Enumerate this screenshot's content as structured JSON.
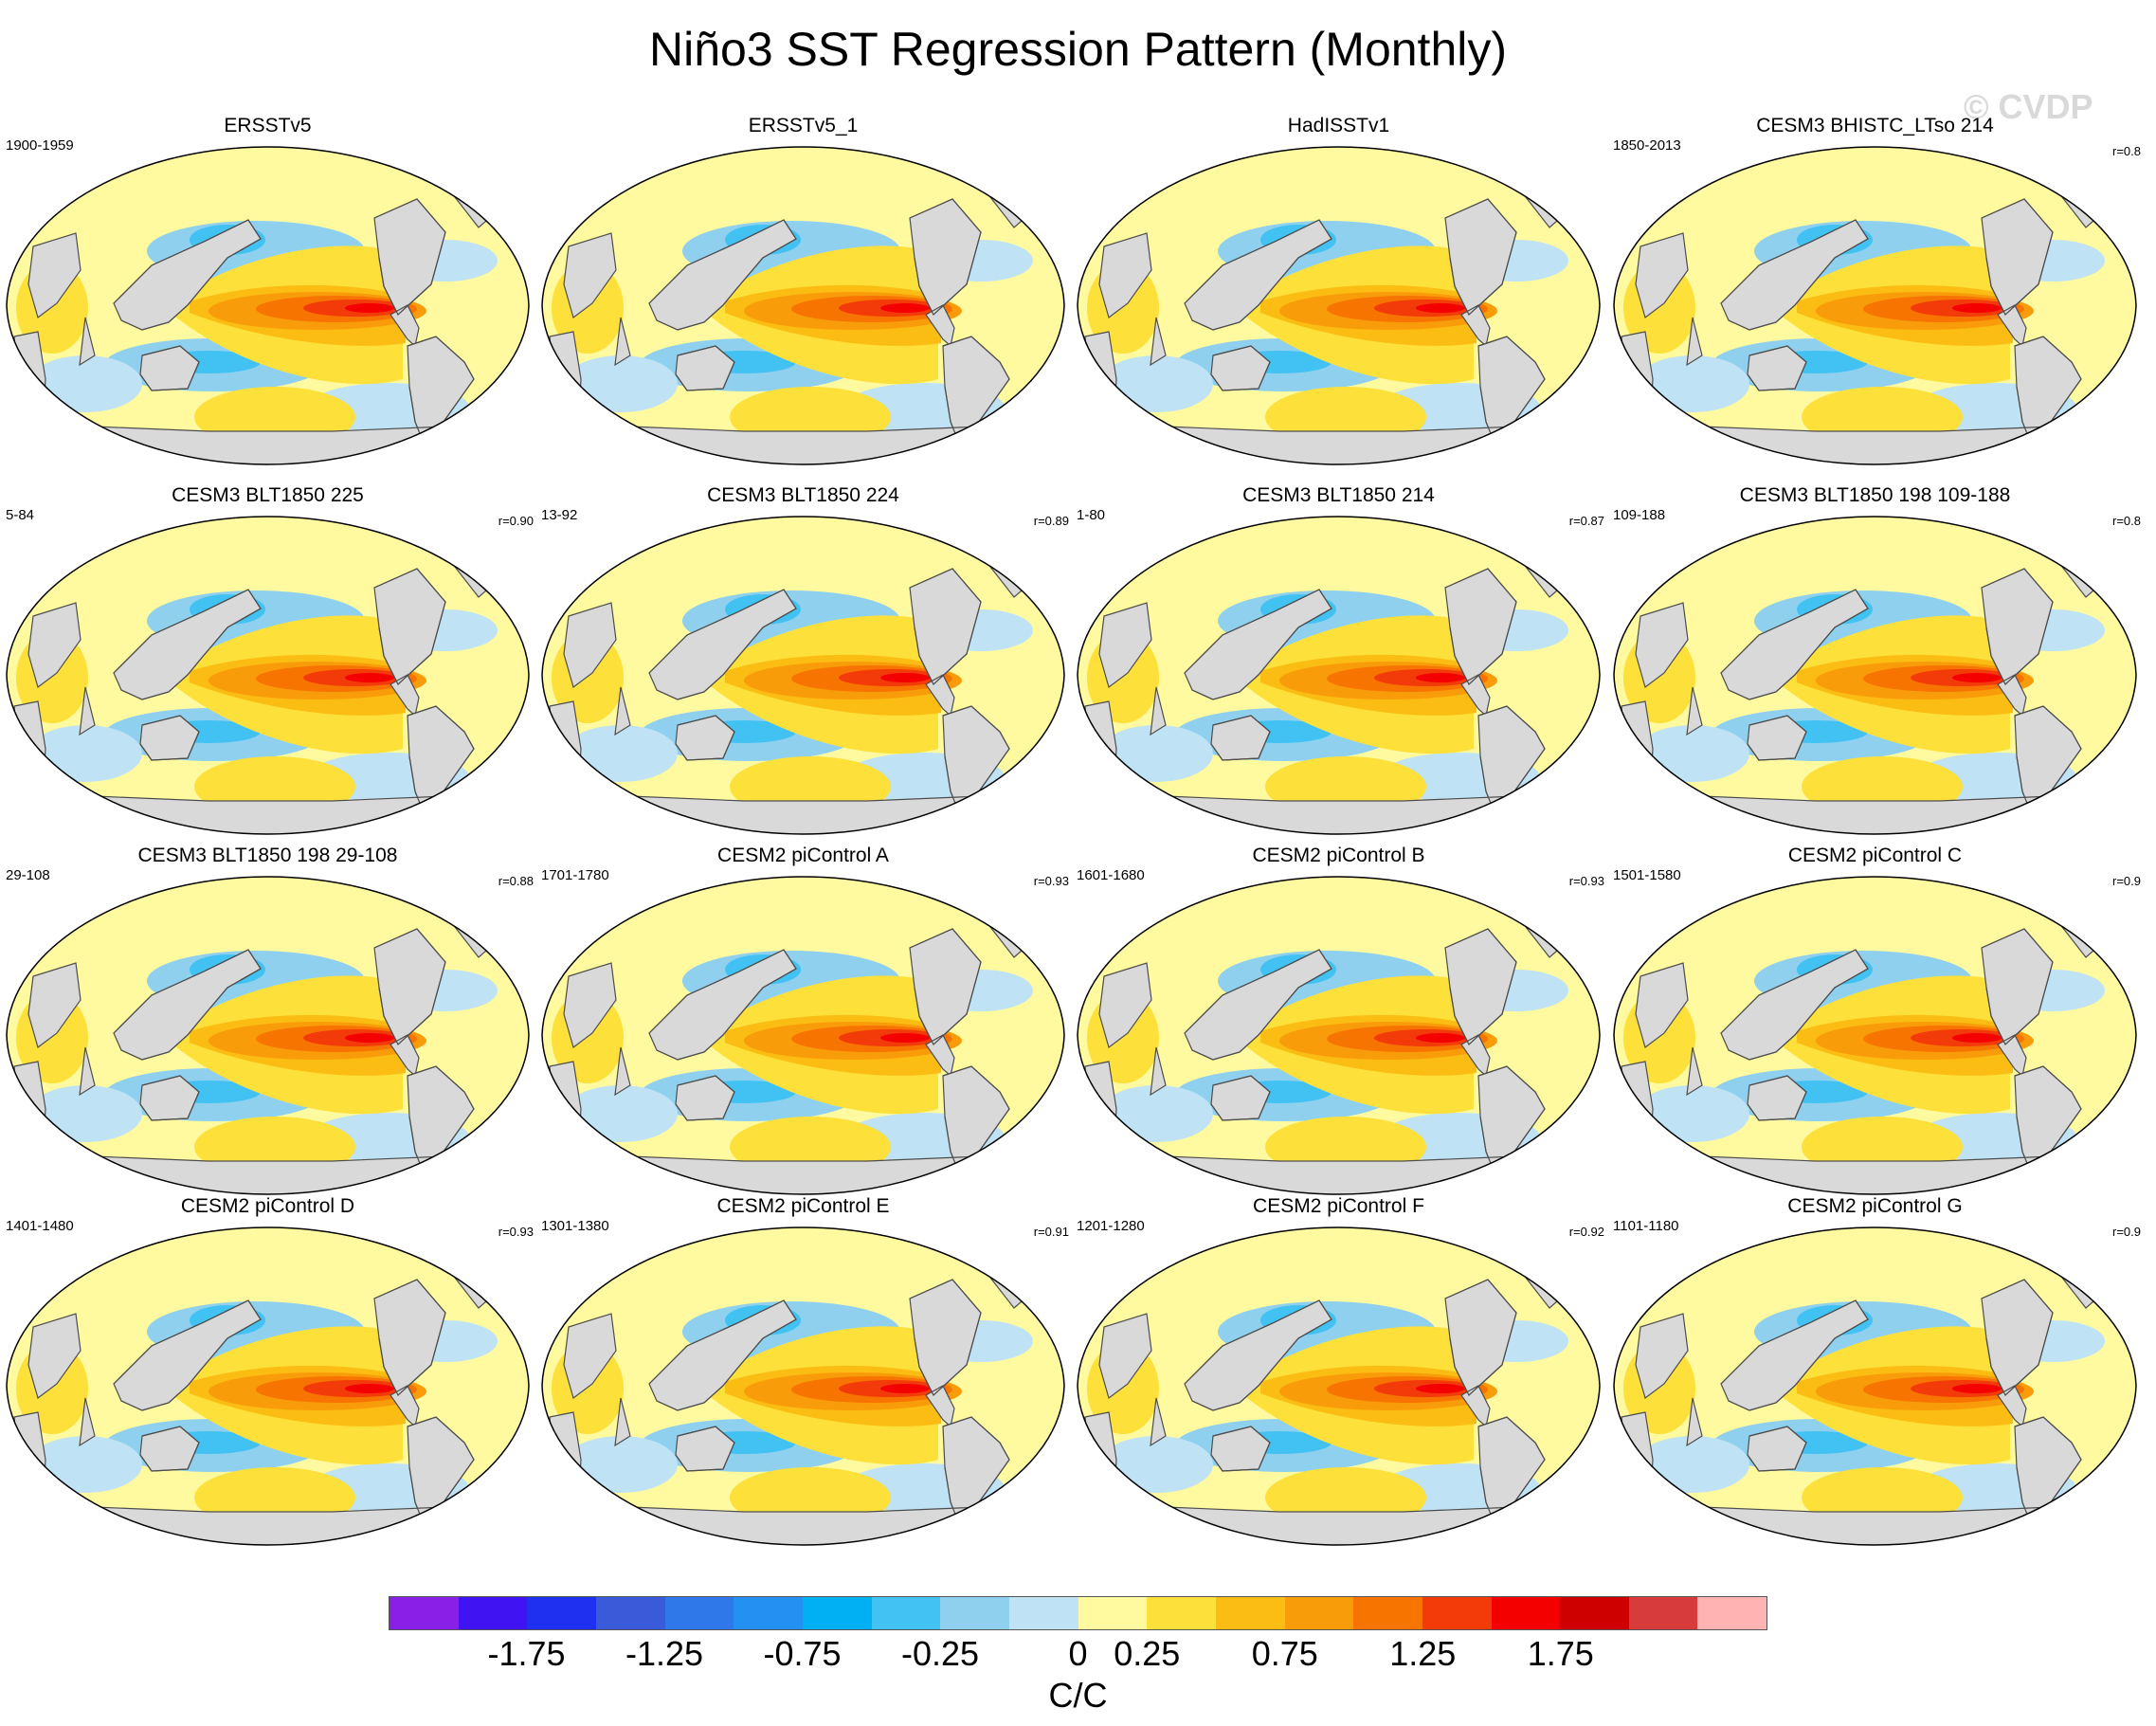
{
  "title": "Niño3 SST Regression Pattern (Monthly)",
  "watermark": "© CVDP",
  "panels": [
    {
      "title": "ERSSTv5",
      "period": "1900-1959",
      "r": ""
    },
    {
      "title": "ERSSTv5_1",
      "period": "",
      "r": ""
    },
    {
      "title": "HadISSTv1",
      "period": "",
      "r": ""
    },
    {
      "title": "CESM3 BHISTC_LTso 214",
      "period": "1850-2013",
      "r": "r=0.8"
    },
    {
      "title": "CESM3 BLT1850 225",
      "period": "5-84",
      "r": "r=0.90"
    },
    {
      "title": "CESM3 BLT1850 224",
      "period": "13-92",
      "r": "r=0.89"
    },
    {
      "title": "CESM3 BLT1850 214",
      "period": "1-80",
      "r": "r=0.87"
    },
    {
      "title": "CESM3 BLT1850 198 109-188",
      "period": "109-188",
      "r": "r=0.8"
    },
    {
      "title": "CESM3 BLT1850 198 29-108",
      "period": "29-108",
      "r": "r=0.88"
    },
    {
      "title": "CESM2 piControl A",
      "period": "1701-1780",
      "r": "r=0.93"
    },
    {
      "title": "CESM2 piControl B",
      "period": "1601-1680",
      "r": "r=0.93"
    },
    {
      "title": "CESM2 piControl C",
      "period": "1501-1580",
      "r": "r=0.9"
    },
    {
      "title": "CESM2 piControl D",
      "period": "1401-1480",
      "r": "r=0.93"
    },
    {
      "title": "CESM2 piControl E",
      "period": "1301-1380",
      "r": "r=0.91"
    },
    {
      "title": "CESM2 piControl F",
      "period": "1201-1280",
      "r": "r=0.92"
    },
    {
      "title": "CESM2 piControl G",
      "period": "1101-1180",
      "r": "r=0.9"
    }
  ],
  "colorbar": {
    "units": "C/C",
    "tick_labels": [
      "-1.75",
      "-1.25",
      "-0.75",
      "-0.25",
      "0",
      "0.25",
      "0.75",
      "1.25",
      "1.75"
    ],
    "colors": [
      "#8a1fe8",
      "#3f13f2",
      "#1f30f0",
      "#3a5ad9",
      "#2f78ea",
      "#2390f2",
      "#00b0f2",
      "#41c2f2",
      "#8fd0ef",
      "#bfe2f5",
      "#fffaa0",
      "#fde03a",
      "#fbbc13",
      "#f99c09",
      "#f77400",
      "#f33a09",
      "#f40000",
      "#cf0000",
      "#d83b3b",
      "#ffb3b3"
    ]
  },
  "map_colors": {
    "land": "#d9d9d9",
    "coast": "#4d4d4d",
    "neutral": "#fffaa0",
    "weak_warm": "#fde03a",
    "warm": "#fbbc13",
    "warmer": "#f99c09",
    "hot": "#f77400",
    "hotter": "#f33a09",
    "hottest": "#f40000",
    "weak_cool": "#bfe2f5",
    "cool": "#8fd0ef",
    "cooler": "#41c2f2"
  }
}
